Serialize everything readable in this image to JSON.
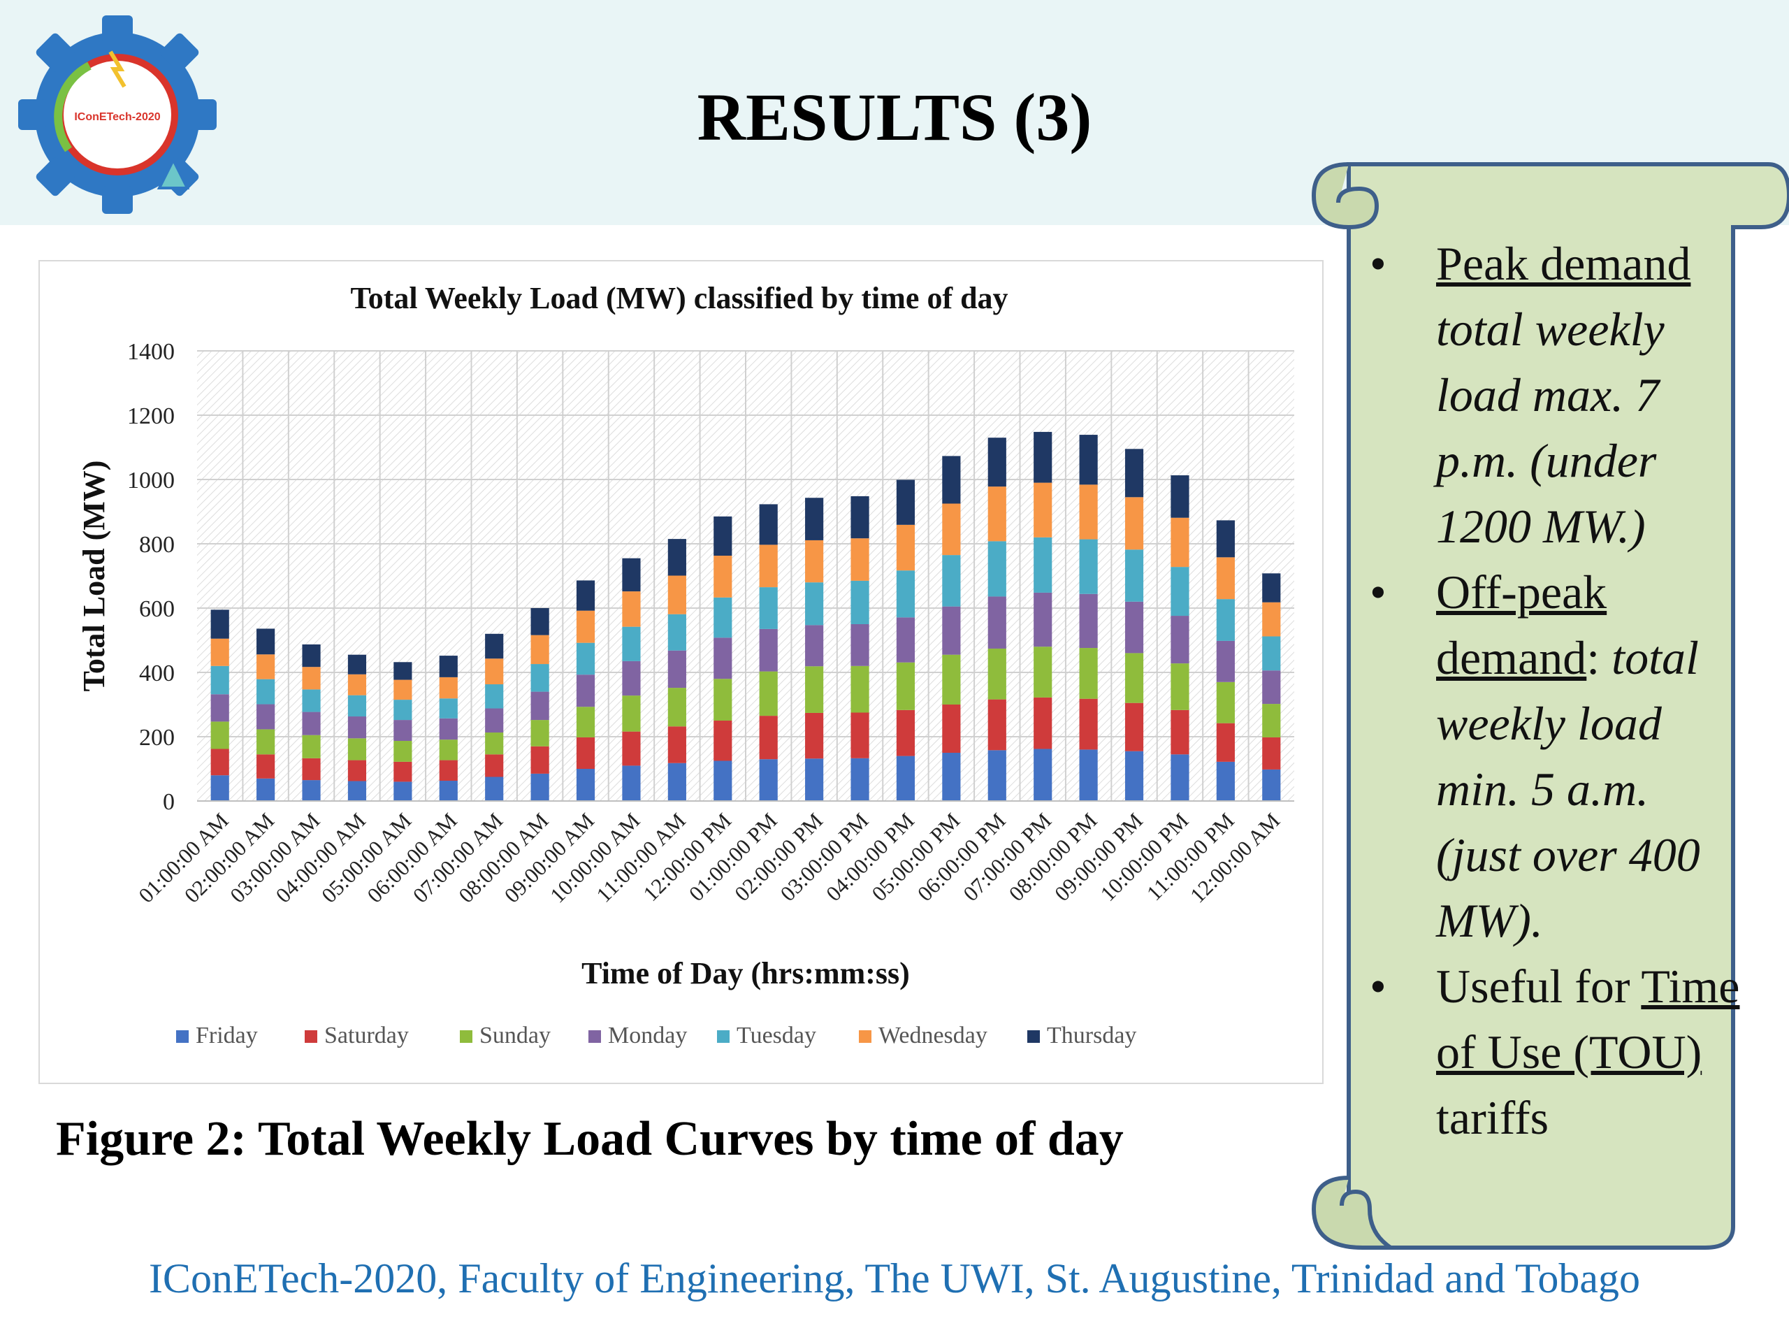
{
  "slide": {
    "title": "RESULTS (3)",
    "logo_text": "IConETech-2020",
    "caption": "Figure 2: Total Weekly Load Curves by time of day",
    "footer": "IConETech-2020, Faculty of Engineering, The UWI, St. Augustine, Trinidad and Tobago"
  },
  "notes": {
    "bullet": "•",
    "peak_title": "Peak demand",
    "peak_text": "total weekly load  max. 7 p.m. (under 1200 MW.)",
    "offpeak_title": "Off-peak demand",
    "offpeak_colon": ":",
    "offpeak_text": "total weekly load  min. 5 a.m. (just over 400 MW).",
    "tou_text1": "Useful for",
    "tou_title": "Time of Use (TOU) ",
    "tou_text2": "tariffs"
  },
  "colors": {
    "Friday": "#4472c4",
    "Saturday": "#cf3b3b",
    "Sunday": "#8fbc3c",
    "Monday": "#8064a2",
    "Tuesday": "#4bacc6",
    "Wednesday": "#f79646",
    "Thursday": "#1f3864",
    "header_band": "#e9f5f6",
    "scroll_fill": "#d6e4bf",
    "scroll_stroke": "#3e5f8a",
    "footer_text": "#1f6fb2"
  },
  "chart_data": {
    "type": "bar",
    "stacked": true,
    "title": "Total Weekly Load (MW) classified by time of day",
    "xlabel": "Time of Day (hrs:mm:ss)",
    "ylabel": "Total  Load (MW)",
    "ylim": [
      0,
      1400
    ],
    "yticks": [
      0,
      200,
      400,
      600,
      800,
      1000,
      1200,
      1400
    ],
    "grid": true,
    "legend_position": "bottom",
    "categories": [
      "01:00:00 AM",
      "02:00:00 AM",
      "03:00:00 AM",
      "04:00:00 AM",
      "05:00:00 AM",
      "06:00:00 AM",
      "07:00:00 AM",
      "08:00:00 AM",
      "09:00:00 AM",
      "10:00:00 AM",
      "11:00:00 AM",
      "12:00:00 PM",
      "01:00:00 PM",
      "02:00:00 PM",
      "03:00:00 PM",
      "04:00:00 PM",
      "05:00:00 PM",
      "06:00:00 PM",
      "07:00:00 PM",
      "08:00:00 PM",
      "09:00:00 PM",
      "10:00:00 PM",
      "11:00:00 PM",
      "12:00:00 AM"
    ],
    "series": [
      {
        "name": "Friday",
        "values": [
          80,
          70,
          65,
          62,
          60,
          63,
          75,
          85,
          100,
          110,
          118,
          125,
          130,
          132,
          133,
          140,
          150,
          158,
          162,
          160,
          155,
          145,
          122,
          98
        ]
      },
      {
        "name": "Saturday",
        "values": [
          82,
          75,
          68,
          65,
          62,
          64,
          70,
          85,
          98,
          106,
          114,
          125,
          135,
          142,
          142,
          143,
          150,
          158,
          160,
          158,
          150,
          138,
          120,
          100
        ]
      },
      {
        "name": "Sunday",
        "values": [
          85,
          78,
          72,
          68,
          65,
          64,
          68,
          82,
          95,
          112,
          120,
          130,
          138,
          145,
          145,
          148,
          155,
          158,
          158,
          158,
          155,
          145,
          128,
          104
        ]
      },
      {
        "name": "Monday",
        "values": [
          85,
          78,
          72,
          68,
          65,
          66,
          75,
          88,
          100,
          107,
          116,
          128,
          132,
          128,
          130,
          140,
          150,
          162,
          168,
          168,
          160,
          148,
          128,
          104
        ]
      },
      {
        "name": "Tuesday",
        "values": [
          88,
          78,
          70,
          66,
          63,
          62,
          75,
          86,
          99,
          107,
          113,
          125,
          130,
          133,
          135,
          146,
          160,
          172,
          172,
          170,
          162,
          152,
          130,
          106
        ]
      },
      {
        "name": "Wednesday",
        "values": [
          85,
          77,
          70,
          65,
          62,
          66,
          80,
          90,
          100,
          110,
          120,
          130,
          132,
          131,
          132,
          142,
          160,
          170,
          170,
          170,
          163,
          153,
          130,
          106
        ]
      },
      {
        "name": "Thursday",
        "values": [
          90,
          80,
          70,
          61,
          55,
          67,
          77,
          84,
          94,
          103,
          114,
          122,
          126,
          132,
          131,
          140,
          148,
          152,
          158,
          155,
          150,
          132,
          115,
          90
        ]
      }
    ]
  }
}
